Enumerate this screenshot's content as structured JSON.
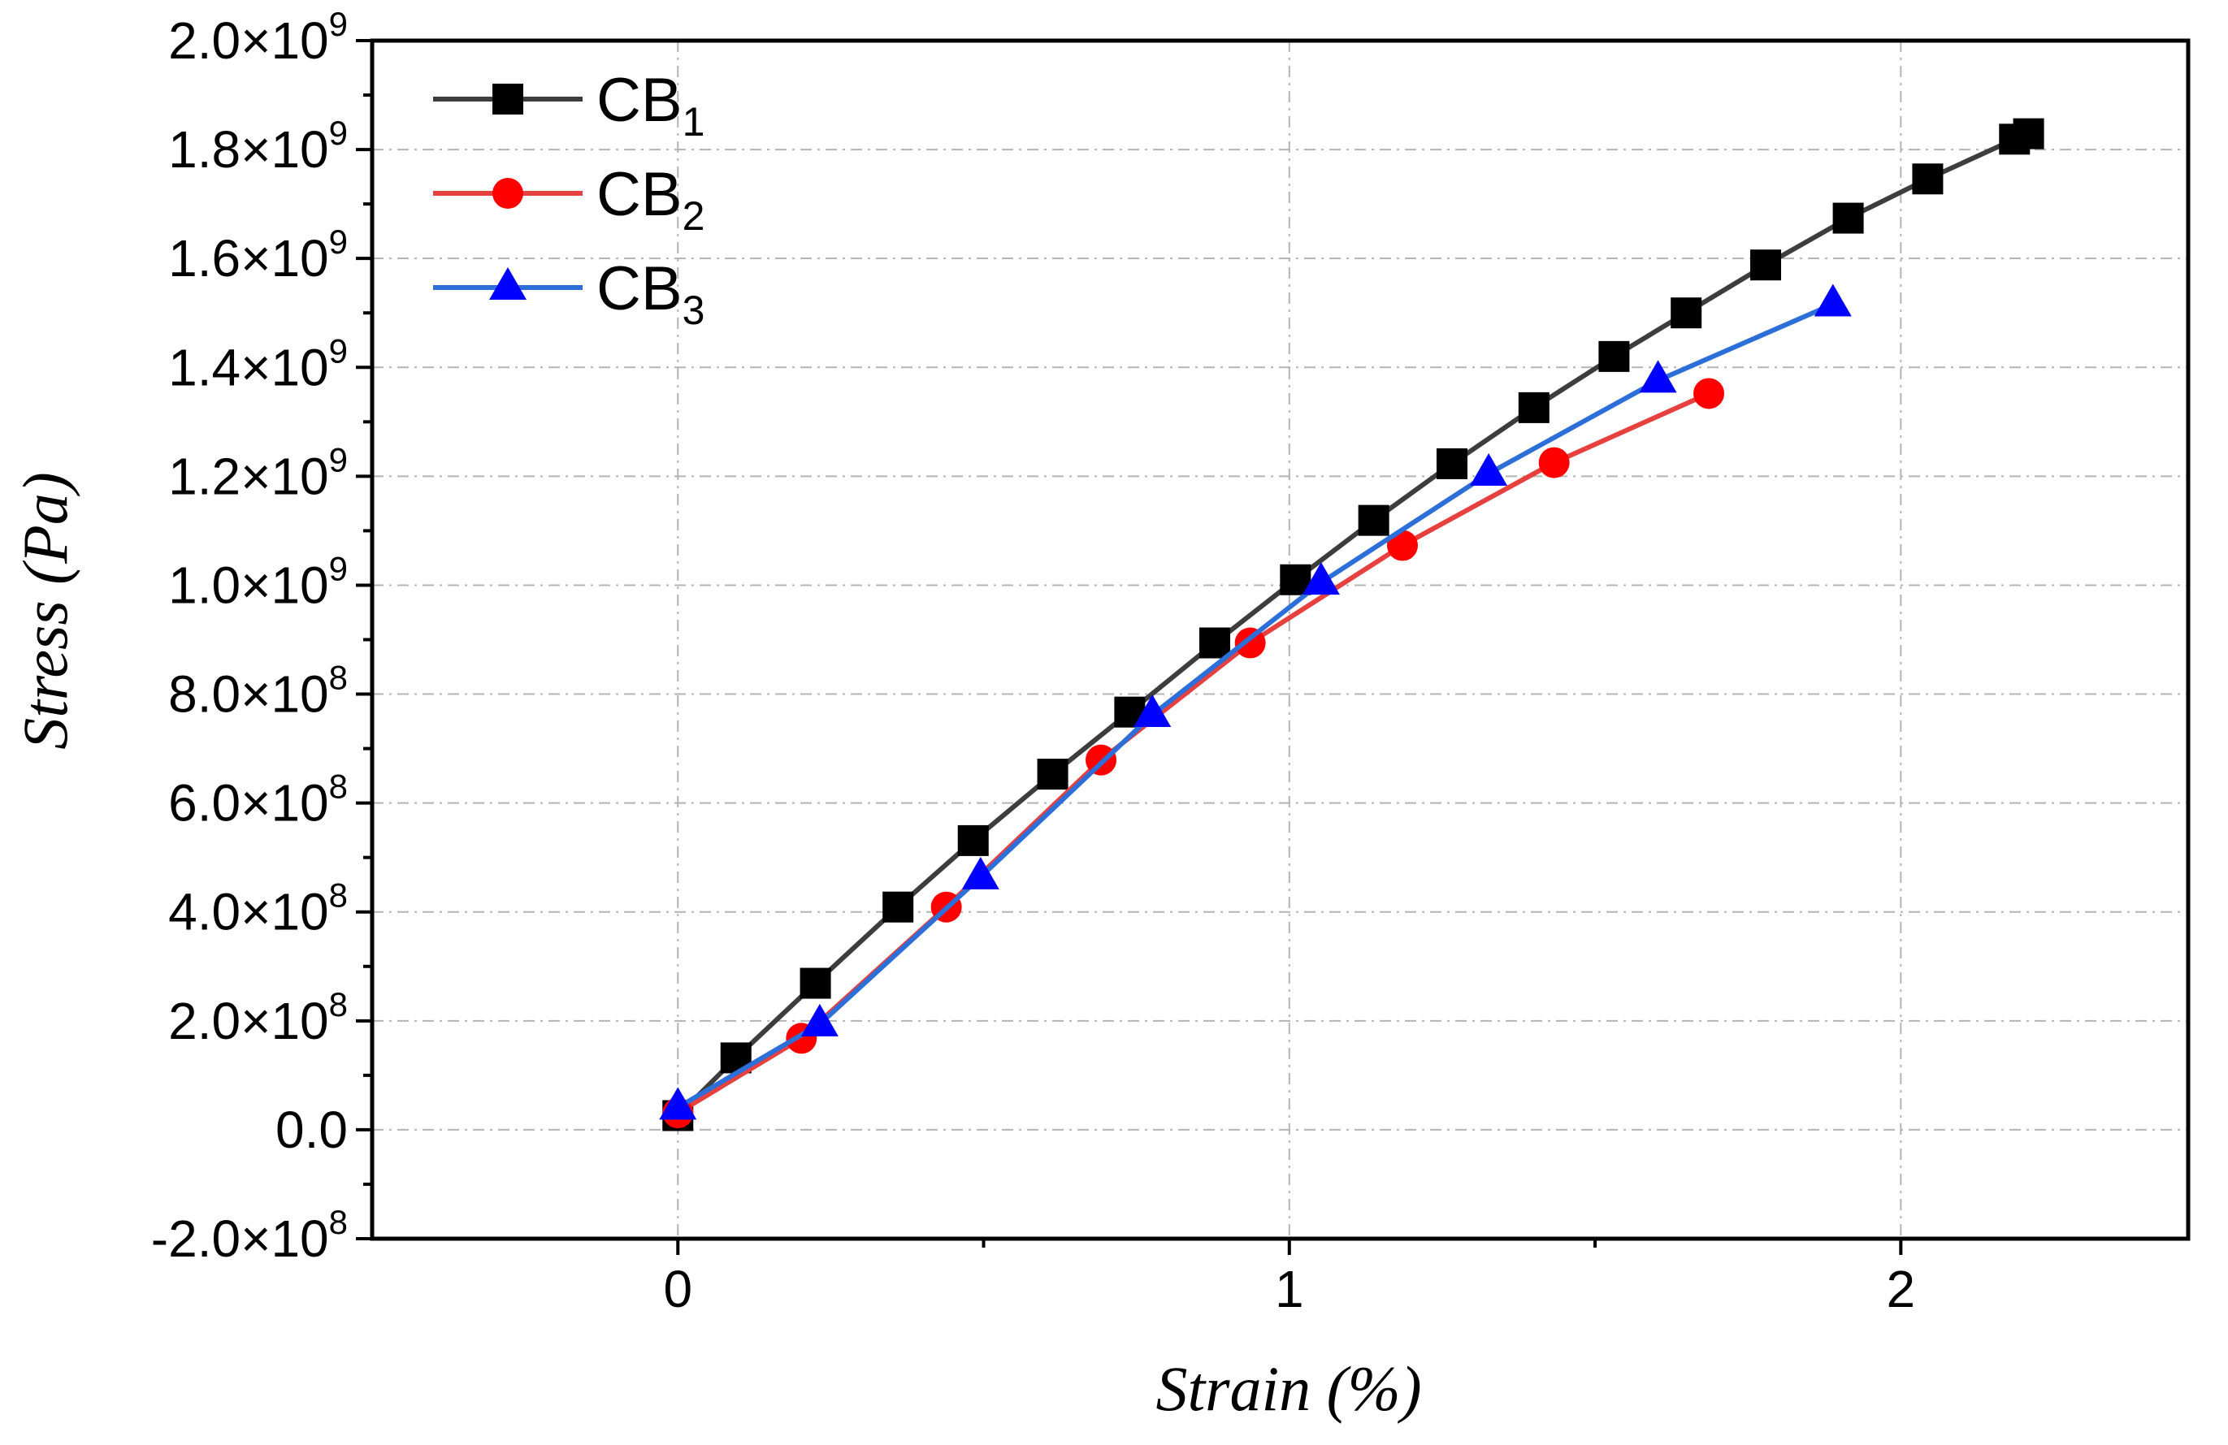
{
  "chart_data": {
    "type": "line",
    "xlabel": "Strain (%)",
    "ylabel": "Stress (Pa)",
    "xlim": [
      -0.5,
      2.47
    ],
    "ylim": [
      -200000000,
      2000000000
    ],
    "grid": true,
    "legend_position": "top-left",
    "x_ticks": [
      {
        "value": 0,
        "label": "0"
      },
      {
        "value": 1,
        "label": "1"
      },
      {
        "value": 2,
        "label": "2"
      }
    ],
    "y_ticks": [
      {
        "value": -200000000,
        "mantissa": "-2.0×10",
        "exponent": "8"
      },
      {
        "value": 0,
        "mantissa": "0.0"
      },
      {
        "value": 200000000,
        "mantissa": "2.0×10",
        "exponent": "8"
      },
      {
        "value": 400000000,
        "mantissa": "4.0×10",
        "exponent": "8"
      },
      {
        "value": 600000000,
        "mantissa": "6.0×10",
        "exponent": "8"
      },
      {
        "value": 800000000,
        "mantissa": "8.0×10",
        "exponent": "8"
      },
      {
        "value": 1000000000,
        "mantissa": "1.0×10",
        "exponent": "9"
      },
      {
        "value": 1200000000,
        "mantissa": "1.2×10",
        "exponent": "9"
      },
      {
        "value": 1400000000,
        "mantissa": "1.4×10",
        "exponent": "9"
      },
      {
        "value": 1600000000,
        "mantissa": "1.6×10",
        "exponent": "9"
      },
      {
        "value": 1800000000,
        "mantissa": "1.8×10",
        "exponent": "9"
      },
      {
        "value": 2000000000,
        "mantissa": "2.0×10",
        "exponent": "9"
      }
    ],
    "series": [
      {
        "name": "CB",
        "subscript": "1",
        "line_color": "#3d3d3d",
        "marker_color": "#000000",
        "marker": "square",
        "x": [
          0.0,
          0.095,
          0.225,
          0.36,
          0.483,
          0.613,
          0.739,
          0.878,
          1.01,
          1.138,
          1.266,
          1.4,
          1.531,
          1.649,
          1.779,
          1.914,
          2.044,
          2.186,
          2.209
        ],
        "y": [
          26000000.0,
          132000000.0,
          269000000.0,
          409000000.0,
          531000000.0,
          653000000.0,
          767000000.0,
          894000000.0,
          1010000000.0,
          1119000000.0,
          1223000000.0,
          1326000000.0,
          1420000000.0,
          1500000000.0,
          1588000000.0,
          1674000000.0,
          1746000000.0,
          1819000000.0,
          1829000000.0
        ]
      },
      {
        "name": "CB",
        "subscript": "2",
        "line_color": "#e6403f",
        "marker_color": "#ff0000",
        "marker": "circle",
        "x": [
          0.0,
          0.202,
          0.439,
          0.692,
          0.936,
          1.185,
          1.433,
          1.686
        ],
        "y": [
          31000000.0,
          168000000.0,
          409000000.0,
          679000000.0,
          894000000.0,
          1073000000.0,
          1225000000.0,
          1352000000.0
        ]
      },
      {
        "name": "CB",
        "subscript": "3",
        "line_color": "#2c6fd9",
        "marker_color": "#0000ff",
        "marker": "triangle",
        "x": [
          0.0,
          0.232,
          0.495,
          0.776,
          1.052,
          1.326,
          1.603,
          1.889
        ],
        "y": [
          41000000.0,
          194000000.0,
          464000000.0,
          762000000.0,
          1005000000.0,
          1205000000.0,
          1376000000.0,
          1516000000.0
        ]
      }
    ]
  }
}
